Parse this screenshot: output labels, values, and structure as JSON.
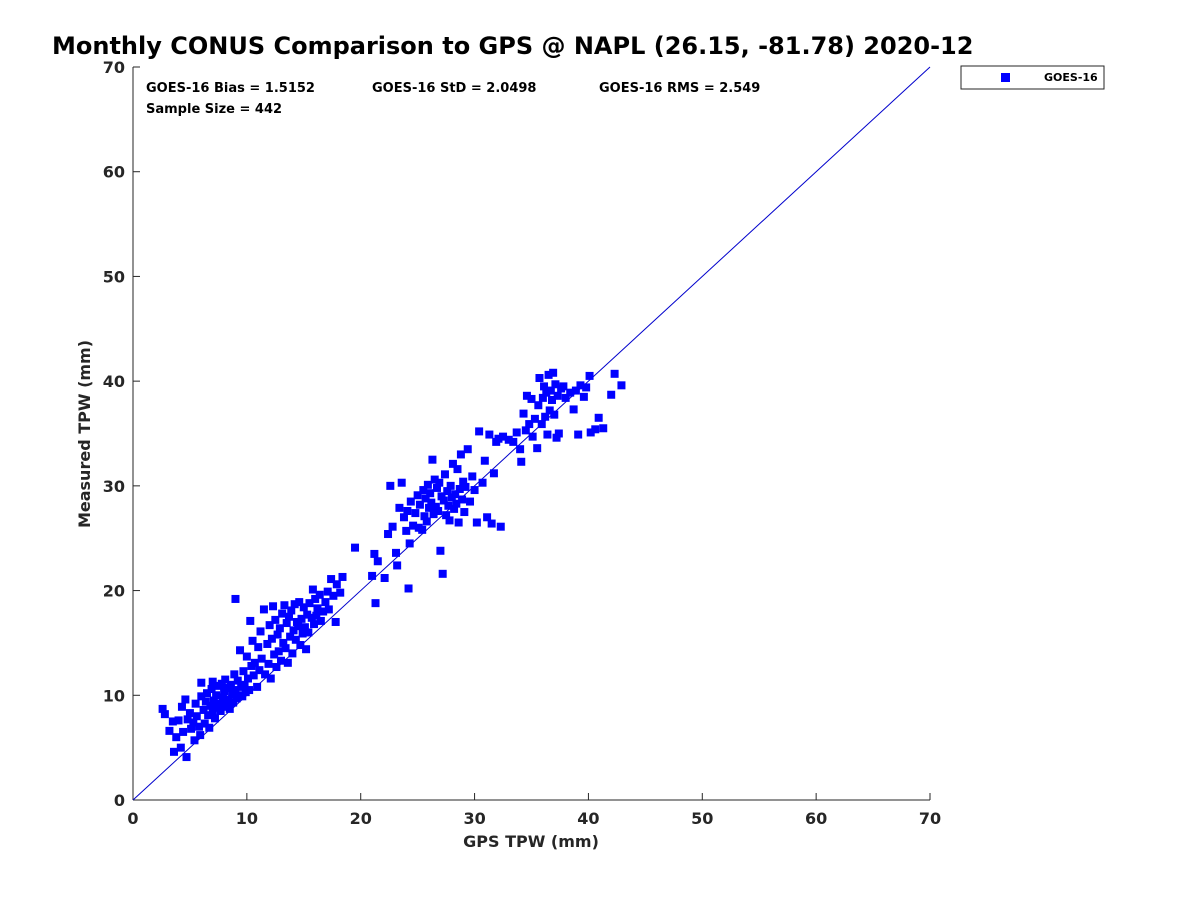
{
  "chart_data": {
    "type": "scatter",
    "title": "Monthly CONUS Comparison to GPS @ NAPL (26.15, -81.78) 2020-12",
    "xlabel": "GPS TPW (mm)",
    "ylabel": "Measured TPW (mm)",
    "xlim": [
      0,
      70
    ],
    "ylim": [
      0,
      70
    ],
    "xticks": [
      0,
      10,
      20,
      30,
      40,
      50,
      60,
      70
    ],
    "yticks": [
      0,
      10,
      20,
      30,
      40,
      50,
      60,
      70
    ],
    "grid": false,
    "legend_position": "top-right",
    "stats": {
      "bias": "GOES-16 Bias = 1.5152",
      "std": "GOES-16 StD = 2.0498",
      "rms": "GOES-16 RMS = 2.549",
      "sample_size": "Sample Size = 442"
    },
    "reference_line": {
      "x": [
        0,
        70
      ],
      "y": [
        0,
        70
      ],
      "color": "#0000cc"
    },
    "series": [
      {
        "name": "GOES-16",
        "color": "#0000ff",
        "marker": "square",
        "points": [
          [
            2.6,
            8.7
          ],
          [
            2.8,
            8.2
          ],
          [
            3.2,
            6.6
          ],
          [
            3.5,
            7.5
          ],
          [
            3.6,
            4.6
          ],
          [
            3.8,
            6.0
          ],
          [
            4.0,
            7.6
          ],
          [
            4.2,
            5.0
          ],
          [
            4.3,
            8.9
          ],
          [
            4.4,
            6.5
          ],
          [
            4.6,
            9.6
          ],
          [
            4.7,
            4.1
          ],
          [
            4.8,
            7.7
          ],
          [
            5.0,
            8.3
          ],
          [
            5.1,
            6.8
          ],
          [
            5.3,
            7.4
          ],
          [
            5.4,
            5.7
          ],
          [
            5.5,
            9.2
          ],
          [
            5.6,
            8.0
          ],
          [
            5.8,
            7.0
          ],
          [
            5.9,
            6.2
          ],
          [
            6.0,
            9.9
          ],
          [
            6.0,
            11.2
          ],
          [
            6.2,
            8.6
          ],
          [
            6.3,
            7.3
          ],
          [
            6.4,
            9.4
          ],
          [
            6.5,
            10.2
          ],
          [
            6.6,
            8.1
          ],
          [
            6.7,
            6.9
          ],
          [
            6.8,
            9.0
          ],
          [
            6.9,
            10.6
          ],
          [
            7.0,
            8.4
          ],
          [
            7.0,
            11.3
          ],
          [
            7.1,
            9.5
          ],
          [
            7.2,
            7.8
          ],
          [
            7.3,
            10.0
          ],
          [
            7.4,
            8.8
          ],
          [
            7.5,
            10.9
          ],
          [
            7.6,
            9.2
          ],
          [
            7.7,
            8.5
          ],
          [
            7.8,
            11.1
          ],
          [
            7.9,
            9.8
          ],
          [
            8.0,
            10.4
          ],
          [
            8.0,
            8.9
          ],
          [
            8.1,
            11.5
          ],
          [
            8.2,
            9.1
          ],
          [
            8.3,
            10.7
          ],
          [
            8.4,
            9.6
          ],
          [
            8.5,
            8.7
          ],
          [
            8.6,
            11.0
          ],
          [
            8.7,
            10.1
          ],
          [
            8.8,
            9.3
          ],
          [
            8.9,
            12.0
          ],
          [
            9.0,
            10.5
          ],
          [
            9.0,
            19.2
          ],
          [
            9.1,
            9.7
          ],
          [
            9.2,
            11.4
          ],
          [
            9.3,
            10.0
          ],
          [
            9.4,
            14.3
          ],
          [
            9.5,
            10.8
          ],
          [
            9.6,
            9.9
          ],
          [
            9.7,
            12.3
          ],
          [
            9.8,
            11.0
          ],
          [
            9.9,
            10.3
          ],
          [
            10.0,
            13.7
          ],
          [
            10.1,
            11.6
          ],
          [
            10.2,
            10.5
          ],
          [
            10.3,
            17.1
          ],
          [
            10.4,
            12.8
          ],
          [
            10.5,
            15.2
          ],
          [
            10.6,
            11.9
          ],
          [
            10.7,
            13.1
          ],
          [
            10.9,
            10.8
          ],
          [
            11.0,
            14.6
          ],
          [
            11.1,
            12.4
          ],
          [
            11.2,
            16.1
          ],
          [
            11.3,
            13.5
          ],
          [
            11.5,
            18.2
          ],
          [
            11.6,
            12.0
          ],
          [
            11.8,
            14.9
          ],
          [
            11.9,
            13.0
          ],
          [
            12.0,
            16.7
          ],
          [
            12.1,
            11.6
          ],
          [
            12.2,
            15.4
          ],
          [
            12.3,
            18.5
          ],
          [
            12.4,
            13.9
          ],
          [
            12.5,
            17.2
          ],
          [
            12.6,
            12.7
          ],
          [
            12.7,
            15.8
          ],
          [
            12.8,
            14.2
          ],
          [
            12.9,
            16.4
          ],
          [
            13.0,
            13.3
          ],
          [
            13.1,
            17.8
          ],
          [
            13.2,
            15.0
          ],
          [
            13.3,
            18.6
          ],
          [
            13.4,
            14.5
          ],
          [
            13.5,
            16.9
          ],
          [
            13.6,
            13.1
          ],
          [
            13.7,
            17.5
          ],
          [
            13.8,
            15.6
          ],
          [
            13.9,
            18.1
          ],
          [
            14.0,
            14.0
          ],
          [
            14.1,
            16.2
          ],
          [
            14.2,
            18.7
          ],
          [
            14.3,
            15.3
          ],
          [
            14.4,
            17.0
          ],
          [
            14.5,
            16.6
          ],
          [
            14.6,
            18.9
          ],
          [
            14.7,
            14.8
          ],
          [
            14.8,
            17.3
          ],
          [
            14.9,
            15.9
          ],
          [
            15.0,
            18.4
          ],
          [
            15.1,
            16.5
          ],
          [
            15.2,
            14.4
          ],
          [
            15.3,
            17.7
          ],
          [
            15.4,
            16.0
          ],
          [
            15.5,
            18.8
          ],
          [
            15.7,
            17.4
          ],
          [
            15.8,
            20.1
          ],
          [
            15.9,
            16.8
          ],
          [
            16.0,
            19.2
          ],
          [
            16.1,
            17.6
          ],
          [
            16.2,
            18.3
          ],
          [
            16.4,
            19.6
          ],
          [
            16.5,
            17.1
          ],
          [
            16.7,
            18.0
          ],
          [
            16.9,
            18.9
          ],
          [
            17.1,
            19.9
          ],
          [
            17.2,
            18.2
          ],
          [
            17.4,
            21.1
          ],
          [
            17.6,
            19.5
          ],
          [
            17.8,
            17.0
          ],
          [
            17.9,
            20.6
          ],
          [
            18.2,
            19.8
          ],
          [
            18.4,
            21.3
          ],
          [
            19.5,
            24.1
          ],
          [
            21.0,
            21.4
          ],
          [
            21.2,
            23.5
          ],
          [
            21.3,
            18.8
          ],
          [
            21.5,
            22.8
          ],
          [
            22.1,
            21.2
          ],
          [
            22.4,
            25.4
          ],
          [
            22.6,
            30.0
          ],
          [
            22.8,
            26.1
          ],
          [
            23.1,
            23.6
          ],
          [
            23.2,
            22.4
          ],
          [
            23.4,
            27.9
          ],
          [
            23.6,
            30.3
          ],
          [
            23.8,
            27.0
          ],
          [
            24.0,
            25.7
          ],
          [
            24.1,
            27.6
          ],
          [
            24.2,
            20.2
          ],
          [
            24.3,
            24.5
          ],
          [
            24.4,
            28.5
          ],
          [
            24.6,
            26.2
          ],
          [
            24.8,
            27.4
          ],
          [
            25.0,
            29.1
          ],
          [
            25.1,
            26.0
          ],
          [
            25.2,
            28.2
          ],
          [
            25.4,
            25.8
          ],
          [
            25.5,
            29.6
          ],
          [
            25.6,
            27.1
          ],
          [
            25.7,
            28.8
          ],
          [
            25.8,
            26.6
          ],
          [
            25.9,
            30.1
          ],
          [
            26.0,
            27.9
          ],
          [
            26.1,
            29.3
          ],
          [
            26.2,
            28.4
          ],
          [
            26.3,
            32.5
          ],
          [
            26.4,
            27.3
          ],
          [
            26.5,
            30.6
          ],
          [
            26.6,
            28.0
          ],
          [
            26.7,
            29.8
          ],
          [
            26.8,
            27.6
          ],
          [
            26.9,
            30.3
          ],
          [
            27.0,
            23.8
          ],
          [
            27.1,
            29.0
          ],
          [
            27.2,
            21.6
          ],
          [
            27.3,
            28.6
          ],
          [
            27.4,
            31.1
          ],
          [
            27.5,
            27.2
          ],
          [
            27.6,
            29.5
          ],
          [
            27.7,
            28.1
          ],
          [
            27.8,
            26.7
          ],
          [
            27.9,
            30.0
          ],
          [
            28.0,
            28.9
          ],
          [
            28.1,
            32.1
          ],
          [
            28.2,
            27.8
          ],
          [
            28.3,
            29.2
          ],
          [
            28.4,
            28.3
          ],
          [
            28.5,
            31.6
          ],
          [
            28.6,
            26.5
          ],
          [
            28.7,
            29.7
          ],
          [
            28.8,
            33.0
          ],
          [
            28.9,
            28.7
          ],
          [
            29.0,
            30.4
          ],
          [
            29.1,
            27.5
          ],
          [
            29.2,
            29.9
          ],
          [
            29.4,
            33.5
          ],
          [
            29.6,
            28.5
          ],
          [
            29.8,
            30.9
          ],
          [
            30.0,
            29.6
          ],
          [
            30.2,
            26.5
          ],
          [
            30.4,
            35.2
          ],
          [
            30.7,
            30.3
          ],
          [
            30.9,
            32.4
          ],
          [
            31.1,
            27.0
          ],
          [
            31.3,
            34.9
          ],
          [
            31.5,
            26.4
          ],
          [
            31.7,
            31.2
          ],
          [
            31.9,
            34.2
          ],
          [
            32.1,
            34.5
          ],
          [
            32.3,
            26.1
          ],
          [
            32.5,
            34.7
          ],
          [
            33.0,
            34.4
          ],
          [
            33.4,
            34.2
          ],
          [
            33.7,
            35.1
          ],
          [
            34.0,
            33.5
          ],
          [
            34.1,
            32.3
          ],
          [
            34.3,
            36.9
          ],
          [
            34.5,
            35.3
          ],
          [
            34.6,
            38.6
          ],
          [
            34.8,
            35.9
          ],
          [
            35.0,
            38.3
          ],
          [
            35.1,
            34.7
          ],
          [
            35.3,
            36.4
          ],
          [
            35.5,
            33.6
          ],
          [
            35.6,
            37.7
          ],
          [
            35.7,
            40.3
          ],
          [
            35.9,
            35.9
          ],
          [
            36.0,
            38.4
          ],
          [
            36.1,
            39.5
          ],
          [
            36.2,
            36.6
          ],
          [
            36.3,
            38.9
          ],
          [
            36.4,
            34.9
          ],
          [
            36.5,
            40.6
          ],
          [
            36.6,
            37.2
          ],
          [
            36.7,
            39.1
          ],
          [
            36.8,
            38.2
          ],
          [
            36.9,
            40.8
          ],
          [
            37.0,
            36.8
          ],
          [
            37.1,
            39.7
          ],
          [
            37.2,
            34.6
          ],
          [
            37.3,
            38.6
          ],
          [
            37.4,
            35.0
          ],
          [
            37.6,
            39.3
          ],
          [
            37.8,
            39.5
          ],
          [
            38.0,
            38.4
          ],
          [
            38.4,
            38.9
          ],
          [
            38.7,
            37.3
          ],
          [
            38.9,
            39.1
          ],
          [
            39.1,
            34.9
          ],
          [
            39.3,
            39.6
          ],
          [
            39.6,
            38.5
          ],
          [
            39.8,
            39.4
          ],
          [
            40.1,
            40.5
          ],
          [
            40.2,
            35.1
          ],
          [
            40.6,
            35.4
          ],
          [
            40.9,
            36.5
          ],
          [
            41.3,
            35.5
          ],
          [
            42.0,
            38.7
          ],
          [
            42.3,
            40.7
          ],
          [
            42.9,
            39.6
          ]
        ]
      }
    ]
  }
}
